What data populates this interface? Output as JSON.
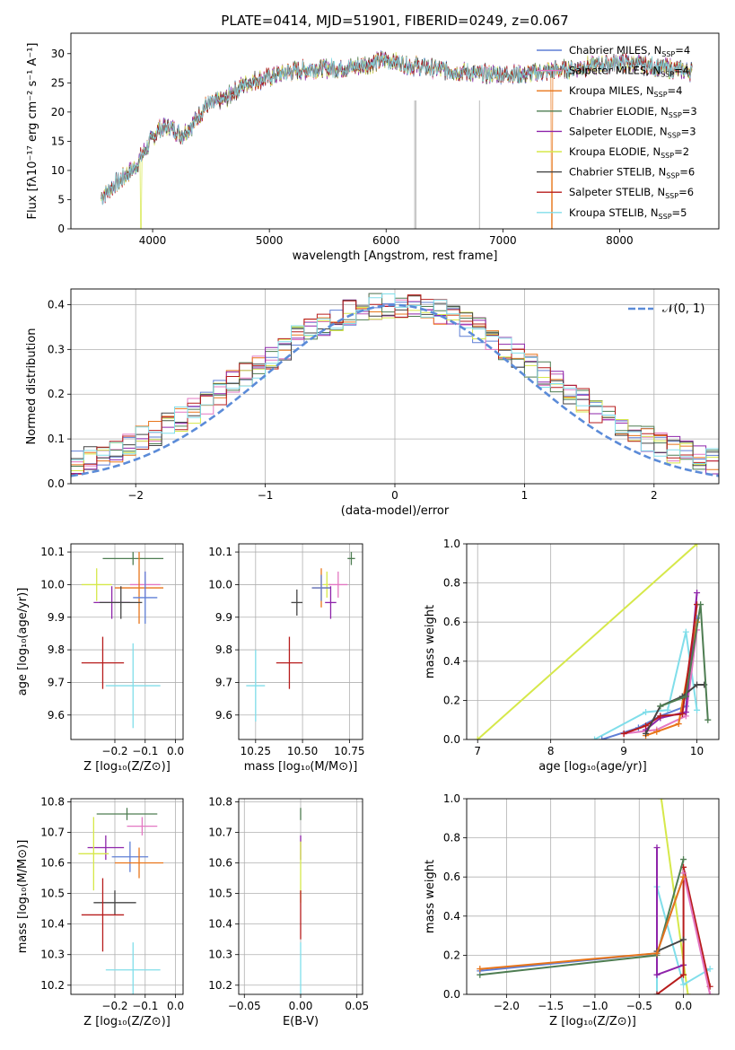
{
  "chart_data": [
    {
      "id": "spectrum",
      "type": "line",
      "title": "PLATE=0414, MJD=51901, FIBERID=0249, z=0.067",
      "xlabel": "wavelength [Angstrom, rest frame]",
      "ylabel": "Flux [fλ10⁻¹⁷ erg cm⁻² s⁻¹ A⁻¹]",
      "xlim": [
        3300,
        8850
      ],
      "ylim": [
        0,
        33.5
      ],
      "xticks": [
        "4000",
        "5000",
        "6000",
        "7000",
        "8000"
      ],
      "yticks": [
        "0",
        "5",
        "10",
        "15",
        "20",
        "25",
        "30"
      ],
      "grid": false,
      "legend_position": "top-right",
      "continuum_points": [
        [
          3560,
          5.5
        ],
        [
          3700,
          8
        ],
        [
          3850,
          10.5
        ],
        [
          3950,
          14
        ],
        [
          4050,
          17
        ],
        [
          4150,
          17.5
        ],
        [
          4250,
          16
        ],
        [
          4350,
          18
        ],
        [
          4450,
          21
        ],
        [
          4600,
          22
        ],
        [
          4800,
          25
        ],
        [
          5000,
          26
        ],
        [
          5200,
          27
        ],
        [
          5400,
          27.5
        ],
        [
          5600,
          27.5
        ],
        [
          5800,
          28
        ],
        [
          6000,
          29
        ],
        [
          6200,
          28
        ],
        [
          6400,
          27.5
        ],
        [
          6600,
          27
        ],
        [
          6800,
          26.5
        ],
        [
          7000,
          26.5
        ],
        [
          7200,
          26.5
        ],
        [
          7400,
          27
        ],
        [
          7600,
          27.5
        ],
        [
          7800,
          28
        ],
        [
          8000,
          28.5
        ],
        [
          8200,
          28
        ],
        [
          8400,
          27.5
        ],
        [
          8600,
          27
        ]
      ],
      "series": [
        {
          "name": "Chabrier MILES, N_SSP=4",
          "label_main": "Chabrier MILES, N",
          "label_sub": "SSP",
          "label_tail": "=4",
          "color": "#5f7fd6",
          "drop_at": null
        },
        {
          "name": "Salpeter MILES, N_SSP=4",
          "label_main": "Salpeter MILES, N",
          "label_sub": "SSP",
          "label_tail": "=4",
          "color": "#e377c2",
          "drop_at": null
        },
        {
          "name": "Kroupa MILES, N_SSP=4",
          "label_main": "Kroupa MILES, N",
          "label_sub": "SSP",
          "label_tail": "=4",
          "color": "#e8751a",
          "drop_at": 7420
        },
        {
          "name": "Chabrier ELODIE, N_SSP=3",
          "label_main": "Chabrier ELODIE, N",
          "label_sub": "SSP",
          "label_tail": "=3",
          "color": "#4e7d52",
          "drop_at": null
        },
        {
          "name": "Salpeter ELODIE, N_SSP=3",
          "label_main": "Salpeter ELODIE, N",
          "label_sub": "SSP",
          "label_tail": "=3",
          "color": "#8e24aa",
          "drop_at": null
        },
        {
          "name": "Kroupa ELODIE, N_SSP=2",
          "label_main": "Kroupa ELODIE, N",
          "label_sub": "SSP",
          "label_tail": "=2",
          "color": "#d6e84a",
          "drop_at": 3900
        },
        {
          "name": "Chabrier STELIB, N_SSP=6",
          "label_main": "Chabrier STELIB, N",
          "label_sub": "SSP",
          "label_tail": "=6",
          "color": "#444444",
          "drop_at": null
        },
        {
          "name": "Salpeter STELIB, N_SSP=6",
          "label_main": "Salpeter STELIB, N",
          "label_sub": "SSP",
          "label_tail": "=6",
          "color": "#b71c1c",
          "drop_at": null
        },
        {
          "name": "Kroupa STELIB, N_SSP=5",
          "label_main": "Kroupa STELIB, N",
          "label_sub": "SSP",
          "label_tail": "=5",
          "color": "#80deea",
          "drop_at": null
        }
      ],
      "data_gaps": [
        6245,
        6255,
        6800
      ]
    },
    {
      "id": "residuals",
      "type": "line",
      "xlabel": "(data-model)/error",
      "ylabel": "Normed distribution",
      "xlim": [
        -2.5,
        2.5
      ],
      "ylim": [
        0,
        0.435
      ],
      "xticks": [
        "−2",
        "−1",
        "0",
        "1",
        "2"
      ],
      "yticks": [
        "0.0",
        "0.1",
        "0.2",
        "0.3",
        "0.4"
      ],
      "grid": true,
      "legend_position": "top-right",
      "legend": "𝒩(0, 1)",
      "reference_curve": "normal pdf, mean 0, sd 1",
      "reference_color": "#5b8bd8",
      "bin_width": 0.1
    },
    {
      "id": "age-vs-Z",
      "type": "scatter",
      "xlabel": "Z [log₁₀(Z/Z⊙)]",
      "ylabel": "age  [log₁₀(age/yr)]",
      "xlim": [
        -0.345,
        0.025
      ],
      "ylim": [
        9.525,
        10.125
      ],
      "xticks": [
        "−0.2",
        "−0.1",
        "0.0"
      ],
      "yticks": [
        "9.6",
        "9.7",
        "9.8",
        "9.9",
        "10.0",
        "10.1"
      ],
      "grid": true,
      "points": [
        {
          "x": -0.14,
          "y": 10.08,
          "xerr": 0.1,
          "yerr": 0.02,
          "color": "#4e7d52"
        },
        {
          "x": -0.26,
          "y": 10.0,
          "xerr": 0.05,
          "yerr": 0.05,
          "color": "#d6e84a"
        },
        {
          "x": -0.1,
          "y": 10.0,
          "xerr": 0.05,
          "yerr": 0.04,
          "color": "#e377c2"
        },
        {
          "x": -0.12,
          "y": 9.99,
          "xerr": 0.08,
          "yerr": 0.11,
          "color": "#e8751a"
        },
        {
          "x": -0.1,
          "y": 9.96,
          "xerr": 0.04,
          "yerr": 0.08,
          "color": "#5f7fd6"
        },
        {
          "x": -0.21,
          "y": 9.945,
          "xerr": 0.06,
          "yerr": 0.05,
          "color": "#8e24aa"
        },
        {
          "x": -0.18,
          "y": 9.945,
          "xerr": 0.07,
          "yerr": 0.05,
          "color": "#444444"
        },
        {
          "x": -0.24,
          "y": 9.76,
          "xerr": 0.07,
          "yerr": 0.08,
          "color": "#b71c1c"
        },
        {
          "x": -0.14,
          "y": 9.69,
          "xerr": 0.09,
          "yerr": 0.13,
          "color": "#80deea"
        }
      ]
    },
    {
      "id": "age-vs-mass",
      "type": "scatter",
      "xlabel": "mass [log₁₀(M/M⊙)]",
      "ylabel": "",
      "xlim": [
        10.16,
        10.82
      ],
      "ylim": [
        9.525,
        10.125
      ],
      "xticks": [
        "10.25",
        "10.50",
        "10.75"
      ],
      "yticks": [
        "9.6",
        "9.7",
        "9.8",
        "9.9",
        "10.0",
        "10.1"
      ],
      "grid": true,
      "points": [
        {
          "x": 10.76,
          "y": 10.08,
          "xerr": 0.02,
          "yerr": 0.02,
          "color": "#4e7d52"
        },
        {
          "x": 10.63,
          "y": 10.0,
          "xerr": 0.02,
          "yerr": 0.04,
          "color": "#d6e84a"
        },
        {
          "x": 10.69,
          "y": 10.0,
          "xerr": 0.05,
          "yerr": 0.04,
          "color": "#e377c2"
        },
        {
          "x": 10.6,
          "y": 9.99,
          "xerr": 0.05,
          "yerr": 0.06,
          "color": "#e8751a"
        },
        {
          "x": 10.6,
          "y": 9.99,
          "xerr": 0.05,
          "yerr": 0.04,
          "color": "#5f7fd6"
        },
        {
          "x": 10.65,
          "y": 9.945,
          "xerr": 0.03,
          "yerr": 0.05,
          "color": "#8e24aa"
        },
        {
          "x": 10.47,
          "y": 9.945,
          "xerr": 0.03,
          "yerr": 0.04,
          "color": "#444444"
        },
        {
          "x": 10.43,
          "y": 9.76,
          "xerr": 0.07,
          "yerr": 0.08,
          "color": "#b71c1c"
        },
        {
          "x": 10.25,
          "y": 9.69,
          "xerr": 0.05,
          "yerr": 0.11,
          "color": "#80deea"
        }
      ]
    },
    {
      "id": "weight-vs-age",
      "type": "line",
      "xlabel": "age  [log₁₀(age/yr)]",
      "ylabel": "mass weight",
      "xlim": [
        6.85,
        10.3
      ],
      "ylim": [
        0,
        1
      ],
      "xticks": [
        "7",
        "8",
        "9",
        "10"
      ],
      "yticks": [
        "0.0",
        "0.2",
        "0.4",
        "0.6",
        "0.8",
        "1.0"
      ],
      "grid": true,
      "lines": [
        {
          "color": "#d6e84a",
          "points": [
            [
              7.0,
              0.0
            ],
            [
              10.0,
              1.0
            ]
          ]
        },
        {
          "color": "#80deea",
          "points": [
            [
              8.6,
              0.0
            ],
            [
              9.3,
              0.14
            ],
            [
              9.6,
              0.15
            ],
            [
              9.85,
              0.55
            ],
            [
              10.0,
              0.15
            ]
          ]
        },
        {
          "color": "#5f7fd6",
          "points": [
            [
              8.7,
              0.0
            ],
            [
              9.2,
              0.06
            ],
            [
              9.5,
              0.12
            ],
            [
              9.85,
              0.17
            ],
            [
              10.0,
              0.62
            ]
          ]
        },
        {
          "color": "#e377c2",
          "points": [
            [
              9.0,
              0.03
            ],
            [
              9.45,
              0.05
            ],
            [
              9.85,
              0.12
            ],
            [
              10.0,
              0.56
            ]
          ]
        },
        {
          "color": "#e8751a",
          "points": [
            [
              9.3,
              0.02
            ],
            [
              9.45,
              0.04
            ],
            [
              9.75,
              0.08
            ],
            [
              10.0,
              0.6
            ]
          ]
        },
        {
          "color": "#8e24aa",
          "points": [
            [
              9.3,
              0.05
            ],
            [
              9.5,
              0.11
            ],
            [
              9.85,
              0.14
            ],
            [
              10.0,
              0.75
            ]
          ]
        },
        {
          "color": "#b71c1c",
          "points": [
            [
              9.0,
              0.03
            ],
            [
              9.3,
              0.07
            ],
            [
              9.5,
              0.12
            ],
            [
              9.8,
              0.13
            ],
            [
              10.0,
              0.69
            ]
          ]
        },
        {
          "color": "#444444",
          "points": [
            [
              9.3,
              0.03
            ],
            [
              9.5,
              0.17
            ],
            [
              9.8,
              0.22
            ],
            [
              10.0,
              0.28
            ],
            [
              10.1,
              0.28
            ]
          ]
        },
        {
          "color": "#4e7d52",
          "points": [
            [
              9.5,
              0.17
            ],
            [
              9.85,
              0.22
            ],
            [
              10.05,
              0.69
            ],
            [
              10.15,
              0.1
            ]
          ]
        }
      ]
    },
    {
      "id": "mass-vs-Z",
      "type": "scatter",
      "xlabel": "Z [log₁₀(Z/Z⊙)]",
      "ylabel": "mass [log₁₀(M/M⊙)]",
      "xlim": [
        -0.345,
        0.025
      ],
      "ylim": [
        10.17,
        10.81
      ],
      "xticks": [
        "−0.2",
        "−0.1",
        "0.0"
      ],
      "yticks": [
        "10.2",
        "10.3",
        "10.4",
        "10.5",
        "10.6",
        "10.7",
        "10.8"
      ],
      "grid": true,
      "points": [
        {
          "x": -0.16,
          "y": 10.76,
          "xerr": 0.1,
          "yerr": 0.02,
          "color": "#4e7d52"
        },
        {
          "x": -0.11,
          "y": 10.72,
          "xerr": 0.05,
          "yerr": 0.03,
          "color": "#e377c2"
        },
        {
          "x": -0.23,
          "y": 10.65,
          "xerr": 0.06,
          "yerr": 0.04,
          "color": "#8e24aa"
        },
        {
          "x": -0.27,
          "y": 10.63,
          "xerr": 0.05,
          "yerr": 0.12,
          "color": "#d6e84a"
        },
        {
          "x": -0.15,
          "y": 10.62,
          "xerr": 0.06,
          "yerr": 0.05,
          "color": "#5f7fd6"
        },
        {
          "x": -0.12,
          "y": 10.6,
          "xerr": 0.08,
          "yerr": 0.05,
          "color": "#e8751a"
        },
        {
          "x": -0.2,
          "y": 10.47,
          "xerr": 0.07,
          "yerr": 0.04,
          "color": "#444444"
        },
        {
          "x": -0.24,
          "y": 10.43,
          "xerr": 0.07,
          "yerr": 0.12,
          "color": "#b71c1c"
        },
        {
          "x": -0.14,
          "y": 10.25,
          "xerr": 0.09,
          "yerr": 0.09,
          "color": "#80deea"
        }
      ]
    },
    {
      "id": "mass-vs-ebv",
      "type": "scatter",
      "xlabel": "E(B-V)",
      "ylabel": "",
      "xlim": [
        -0.055,
        0.055
      ],
      "ylim": [
        10.17,
        10.81
      ],
      "xticks": [
        "−0.05",
        "0.00",
        "0.05"
      ],
      "yticks": [
        "10.2",
        "10.3",
        "10.4",
        "10.5",
        "10.6",
        "10.7",
        "10.8"
      ],
      "grid": true,
      "points": [
        {
          "x": 0.0,
          "y": 10.76,
          "xerr": 0,
          "yerr": 0.02,
          "color": "#4e7d52"
        },
        {
          "x": 0.0,
          "y": 10.65,
          "xerr": 0,
          "yerr": 0.04,
          "color": "#8e24aa"
        },
        {
          "x": 0.0,
          "y": 10.57,
          "xerr": 0,
          "yerr": 0.1,
          "color": "#d6e84a"
        },
        {
          "x": 0.0,
          "y": 10.43,
          "xerr": 0,
          "yerr": 0.08,
          "color": "#b71c1c"
        },
        {
          "x": 0.0,
          "y": 10.25,
          "xerr": 0,
          "yerr": 0.09,
          "color": "#80deea"
        }
      ]
    },
    {
      "id": "weight-vs-Z",
      "type": "line",
      "xlabel": "Z [log₁₀(Z/Z⊙)]",
      "ylabel": "mass weight",
      "xlim": [
        -2.45,
        0.4
      ],
      "ylim": [
        0,
        1
      ],
      "xticks": [
        "−2.0",
        "−1.5",
        "−1.0",
        "−0.5",
        "0.0"
      ],
      "yticks": [
        "0.0",
        "0.2",
        "0.4",
        "0.6",
        "0.8",
        "1.0"
      ],
      "grid": true,
      "lines": [
        {
          "color": "#d6e84a",
          "points": [
            [
              -0.25,
              1.0
            ],
            [
              0.05,
              0.0
            ]
          ]
        },
        {
          "color": "#80deea",
          "points": [
            [
              -0.3,
              0.0
            ],
            [
              -0.3,
              0.55
            ],
            [
              0.0,
              0.05
            ],
            [
              0.3,
              0.13
            ]
          ]
        },
        {
          "color": "#8e24aa",
          "points": [
            [
              -0.3,
              0.75
            ],
            [
              -0.3,
              0.1
            ],
            [
              0.0,
              0.15
            ]
          ]
        },
        {
          "color": "#b71c1c",
          "points": [
            [
              -0.3,
              0.0
            ],
            [
              0.0,
              0.1
            ],
            [
              0.0,
              0.65
            ],
            [
              0.3,
              0.04
            ]
          ]
        },
        {
          "color": "#e377c2",
          "points": [
            [
              0.0,
              0.62
            ],
            [
              0.3,
              0.0
            ]
          ]
        },
        {
          "color": "#4e7d52",
          "points": [
            [
              -2.3,
              0.1
            ],
            [
              -0.3,
              0.2
            ],
            [
              0.0,
              0.69
            ]
          ]
        },
        {
          "color": "#444444",
          "points": [
            [
              -0.3,
              0.22
            ],
            [
              0.0,
              0.28
            ]
          ]
        },
        {
          "color": "#5f7fd6",
          "points": [
            [
              -2.3,
              0.12
            ],
            [
              -0.3,
              0.21
            ],
            [
              0.0,
              0.6
            ]
          ]
        },
        {
          "color": "#e8751a",
          "points": [
            [
              -2.3,
              0.13
            ],
            [
              -0.3,
              0.21
            ],
            [
              0.0,
              0.6
            ]
          ]
        }
      ]
    }
  ]
}
